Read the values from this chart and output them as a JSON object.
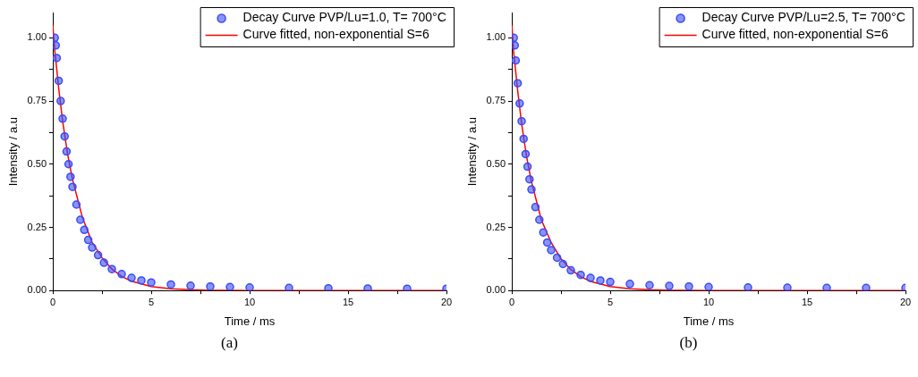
{
  "chart_data": [
    {
      "type": "scatter",
      "xlabel": "Time / ms",
      "ylabel": "Intensity / a.u",
      "annotations": [
        "(a)"
      ],
      "legend": "top right",
      "grid": false,
      "marker": "circle",
      "xlim": [
        0,
        20
      ],
      "ylim": [
        0,
        1.1
      ],
      "xticks": [
        0,
        {
          "value": 2.5,
          "label": null
        },
        5,
        {
          "value": 7.5,
          "label": null
        },
        10,
        {
          "value": 12.5,
          "label": null
        },
        15,
        {
          "value": 17.5,
          "label": null
        },
        20
      ],
      "yticks": [
        {
          "value": 0,
          "label": "0.00"
        },
        {
          "value": 0.125,
          "label": null
        },
        {
          "value": 0.25,
          "label": "0.25"
        },
        {
          "value": 0.375,
          "label": null
        },
        {
          "value": 0.5,
          "label": "0.50"
        },
        {
          "value": 0.625,
          "label": null
        },
        {
          "value": 0.75,
          "label": "0.75"
        },
        {
          "value": 0.875,
          "label": null
        },
        {
          "value": 1,
          "label": "1.00"
        }
      ],
      "series": [
        {
          "name": "Decay Curve PVP/Lu=1.0, T= 700°C",
          "color": "#3a4cf5",
          "x": [
            0.1,
            0.15,
            0.2,
            0.3,
            0.4,
            0.5,
            0.6,
            0.7,
            0.8,
            0.9,
            1.0,
            1.2,
            1.4,
            1.6,
            1.8,
            2.0,
            2.3,
            2.6,
            3.0,
            3.5,
            4.0,
            4.5,
            5,
            6,
            7,
            8,
            9,
            10,
            12,
            14,
            16,
            18,
            20
          ],
          "values": [
            1.0,
            0.97,
            0.92,
            0.83,
            0.75,
            0.68,
            0.61,
            0.55,
            0.5,
            0.45,
            0.41,
            0.34,
            0.28,
            0.24,
            0.2,
            0.17,
            0.14,
            0.11,
            0.085,
            0.065,
            0.05,
            0.04,
            0.032,
            0.024,
            0.019,
            0.016,
            0.014,
            0.012,
            0.01,
            0.009,
            0.008,
            0.007,
            0.007
          ]
        },
        {
          "name": "Curve fitted, non-exponential S=6",
          "type": "line",
          "marker": "none",
          "color": "#ff0000",
          "x": [
            0,
            0.1,
            0.3,
            0.5,
            0.75,
            1,
            1.5,
            2,
            2.5,
            3,
            3.5,
            4,
            5,
            6,
            7,
            8,
            10,
            15,
            20
          ],
          "values": [
            1.05,
            0.95,
            0.8,
            0.67,
            0.54,
            0.44,
            0.29,
            0.19,
            0.13,
            0.085,
            0.056,
            0.037,
            0.016,
            0.007,
            0.003,
            0.001,
            0,
            0,
            0
          ]
        }
      ]
    },
    {
      "type": "scatter",
      "xlabel": "Time / ms",
      "ylabel": "Intensity / a.u",
      "annotations": [
        "(b)"
      ],
      "legend": "top right",
      "grid": false,
      "marker": "circle",
      "xlim": [
        0,
        20
      ],
      "ylim": [
        0,
        1.1
      ],
      "xticks": [
        0,
        {
          "value": 2.5,
          "label": null
        },
        5,
        {
          "value": 7.5,
          "label": null
        },
        10,
        {
          "value": 12.5,
          "label": null
        },
        15,
        {
          "value": 17.5,
          "label": null
        },
        20
      ],
      "yticks": [
        {
          "value": 0,
          "label": "0.00"
        },
        {
          "value": 0.125,
          "label": null
        },
        {
          "value": 0.25,
          "label": "0.25"
        },
        {
          "value": 0.375,
          "label": null
        },
        {
          "value": 0.5,
          "label": "0.50"
        },
        {
          "value": 0.625,
          "label": null
        },
        {
          "value": 0.75,
          "label": "0.75"
        },
        {
          "value": 0.875,
          "label": null
        },
        {
          "value": 1,
          "label": "1.00"
        }
      ],
      "series": [
        {
          "name": "Decay Curve PVP/Lu=2.5, T= 700°C",
          "color": "#3a4cf5",
          "x": [
            0.1,
            0.15,
            0.2,
            0.3,
            0.4,
            0.5,
            0.6,
            0.7,
            0.8,
            0.9,
            1.0,
            1.2,
            1.4,
            1.6,
            1.8,
            2.0,
            2.3,
            2.6,
            3.0,
            3.5,
            4.0,
            4.5,
            5,
            6,
            7,
            8,
            9,
            10,
            12,
            14,
            16,
            18,
            20
          ],
          "values": [
            1.0,
            0.97,
            0.91,
            0.82,
            0.74,
            0.67,
            0.6,
            0.54,
            0.49,
            0.44,
            0.4,
            0.33,
            0.28,
            0.23,
            0.19,
            0.16,
            0.13,
            0.105,
            0.08,
            0.062,
            0.05,
            0.04,
            0.034,
            0.026,
            0.021,
            0.018,
            0.016,
            0.014,
            0.012,
            0.011,
            0.01,
            0.01,
            0.01
          ]
        },
        {
          "name": "Curve fitted, non-exponential S=6",
          "type": "line",
          "marker": "none",
          "color": "#ff0000",
          "x": [
            0,
            0.1,
            0.3,
            0.5,
            0.75,
            1,
            1.5,
            2,
            2.5,
            3,
            3.5,
            4,
            5,
            6,
            7,
            8,
            10,
            15,
            20
          ],
          "values": [
            1.05,
            0.94,
            0.79,
            0.66,
            0.53,
            0.43,
            0.28,
            0.19,
            0.125,
            0.083,
            0.055,
            0.036,
            0.016,
            0.007,
            0.003,
            0.001,
            0,
            0,
            0
          ]
        }
      ]
    }
  ]
}
